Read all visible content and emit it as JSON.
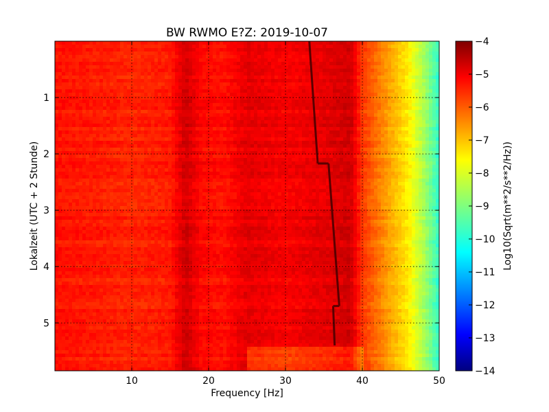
{
  "chart_data": {
    "type": "heatmap",
    "title": "BW RWMO E?Z: 2019-10-07",
    "xlabel": "Frequency [Hz]",
    "ylabel": "Lokalzeit (UTC + 2 Stunde)",
    "xlim": [
      0,
      50
    ],
    "ylim": [
      5.85,
      0.0
    ],
    "x_ticks": [
      "10",
      "20",
      "30",
      "40",
      "50"
    ],
    "y_ticks": [
      "1",
      "2",
      "3",
      "4",
      "5"
    ],
    "grid": true,
    "colormap": "jet",
    "colorbar": {
      "label": "Log10(Sqrt(m**2/s**2/Hz))",
      "range": [
        -14,
        -4
      ],
      "ticks": [
        "-4",
        "-5",
        "-6",
        "-7",
        "-8",
        "-9",
        "-10",
        "-11",
        "-12",
        "-13",
        "-14"
      ]
    },
    "spectrum_profile": {
      "frequency_hz": [
        0,
        5,
        10,
        15,
        17,
        19,
        22,
        25,
        30,
        35,
        38.5,
        40,
        42,
        44,
        46,
        48,
        50
      ],
      "log_amplitude": [
        -5.4,
        -5.5,
        -5.6,
        -5.5,
        -4.8,
        -5.3,
        -5.4,
        -5.0,
        -5.2,
        -5.0,
        -4.8,
        -5.8,
        -6.4,
        -7.0,
        -7.6,
        -8.6,
        -9.8
      ]
    },
    "tonal_line": [
      {
        "time_h": 0.0,
        "freq_hz": 33.1
      },
      {
        "time_h": 2.17,
        "freq_hz": 34.2
      },
      {
        "time_h": 2.17,
        "freq_hz": 35.6
      },
      {
        "time_h": 4.7,
        "freq_hz": 37.0
      },
      {
        "time_h": 4.7,
        "freq_hz": 36.2
      },
      {
        "time_h": 5.4,
        "freq_hz": 36.4
      }
    ],
    "data_end_time_h": 5.45
  },
  "colors": {
    "jet": [
      "#00007f",
      "#0000ff",
      "#007fff",
      "#00ffff",
      "#7fff7f",
      "#ffff00",
      "#ff7f00",
      "#ff0000",
      "#7f0000"
    ]
  }
}
